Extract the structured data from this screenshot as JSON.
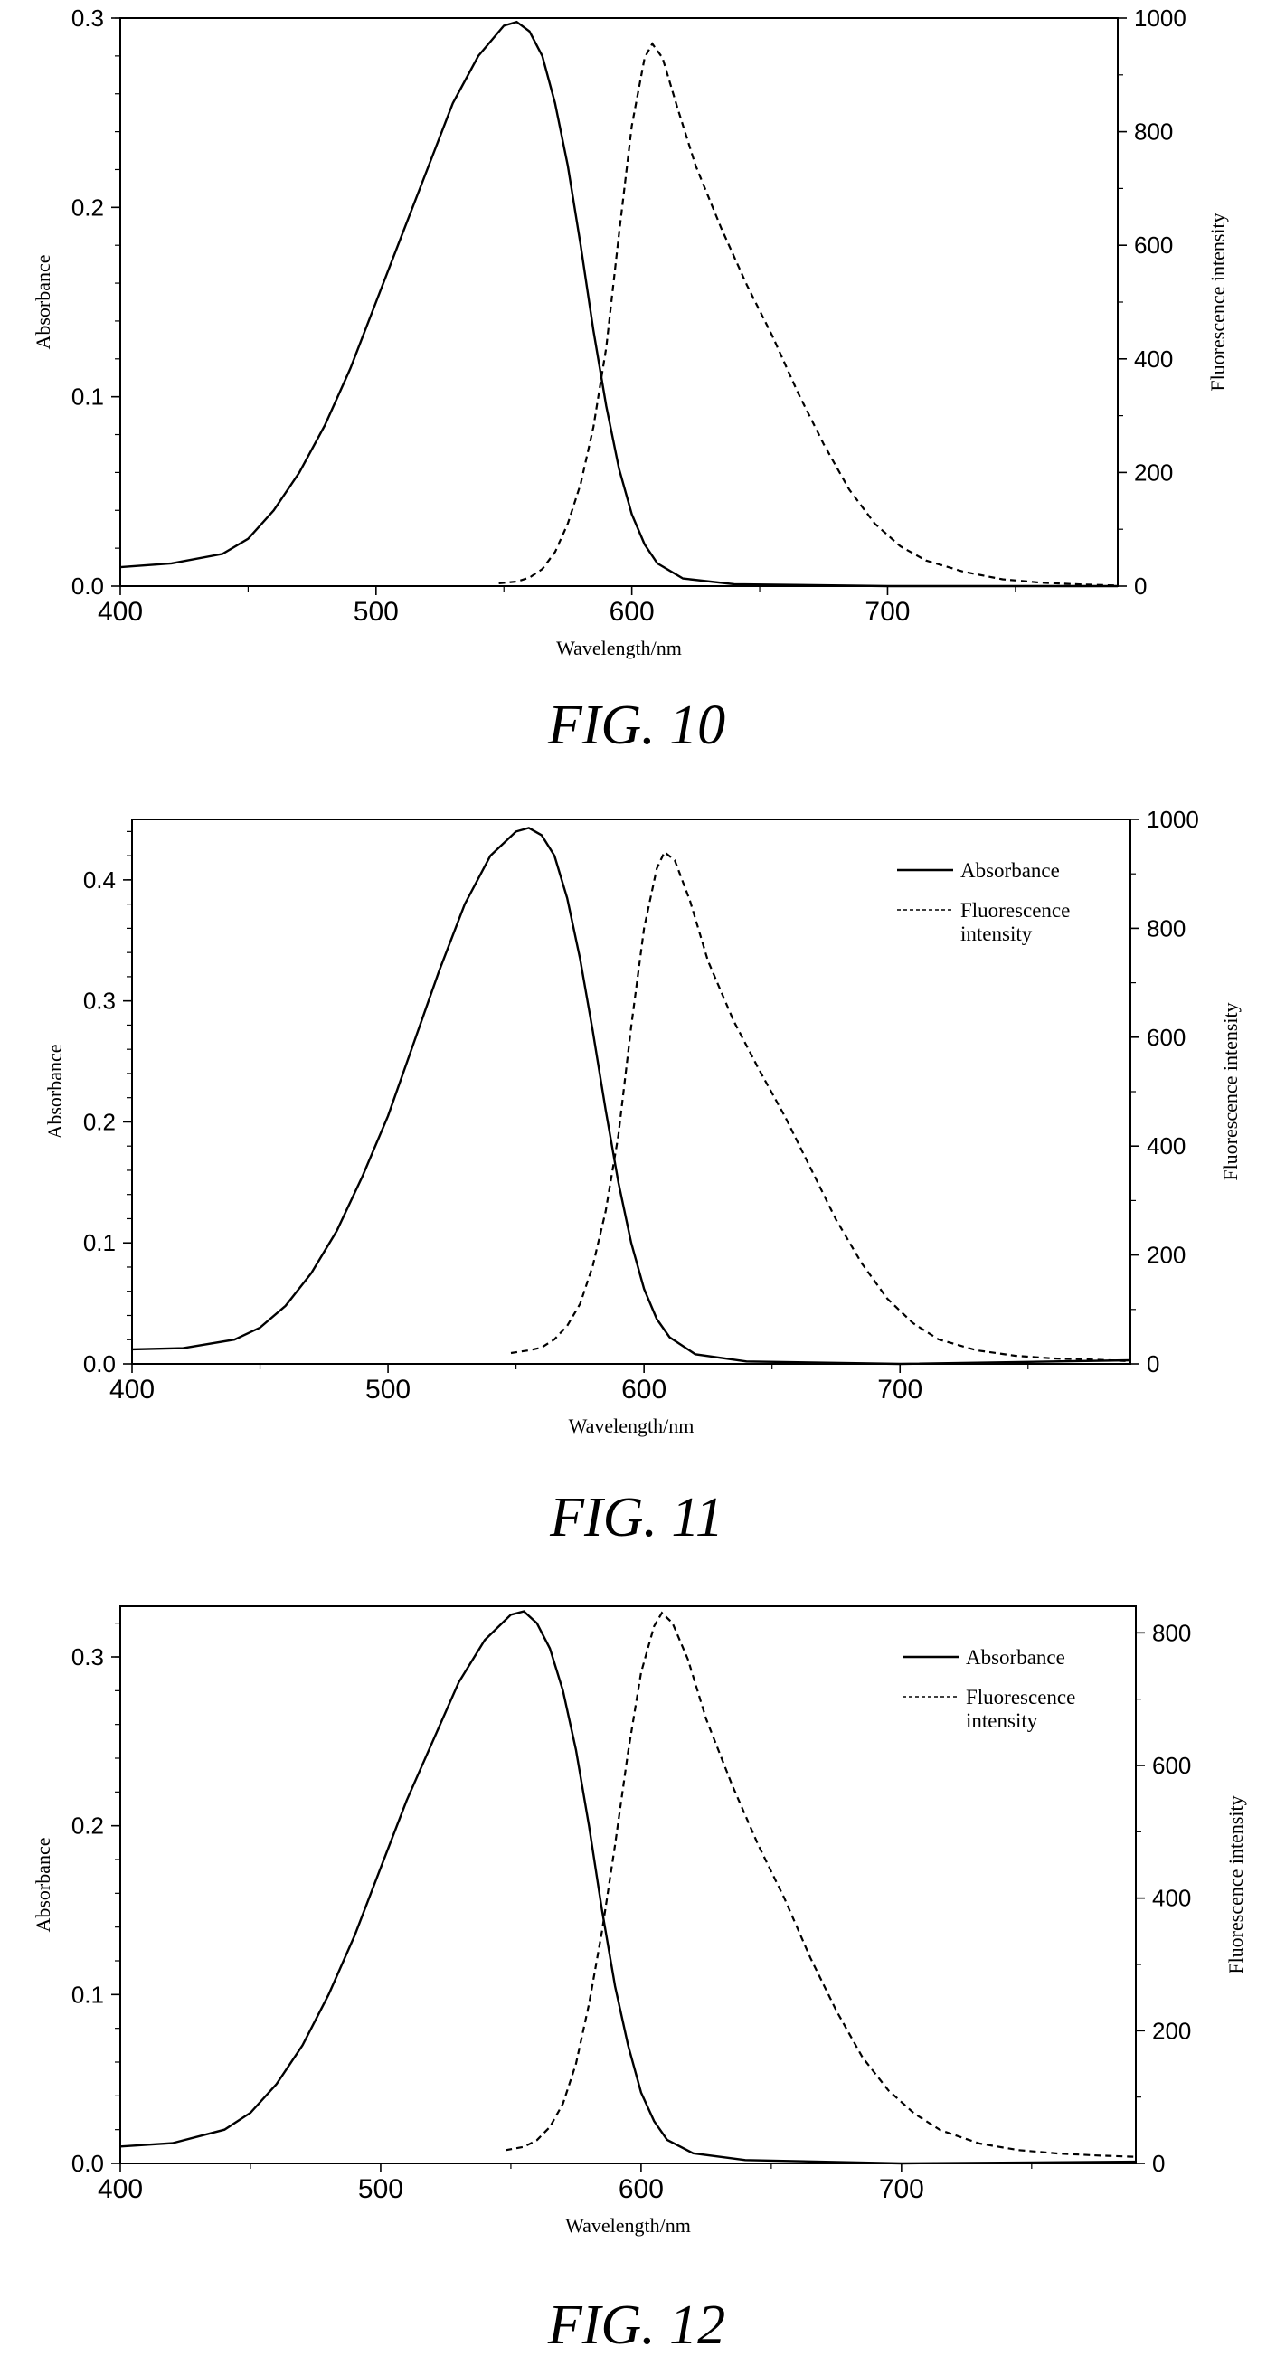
{
  "chart_data": [
    {
      "type": "line",
      "caption": "FIG. 10",
      "xlabel": "Wavelength/nm",
      "ylabel": "Absorbance",
      "y2label": "Fluorescence intensity",
      "xlim": [
        400,
        790
      ],
      "ylim": [
        0,
        0.3
      ],
      "y2lim": [
        0,
        1000
      ],
      "x_ticks": [
        400,
        500,
        600,
        700
      ],
      "y_ticks": [
        0.0,
        0.1,
        0.2,
        0.3
      ],
      "y_tick_labels": [
        "0.0",
        "0.1",
        "0.2",
        "0.3"
      ],
      "y2_ticks": [
        0,
        200,
        400,
        600,
        800,
        1000
      ],
      "legend": null,
      "series": [
        {
          "axis": "left",
          "style": "solid",
          "points": [
            [
              400,
              0.01
            ],
            [
              420,
              0.012
            ],
            [
              440,
              0.017
            ],
            [
              450,
              0.025
            ],
            [
              460,
              0.04
            ],
            [
              470,
              0.06
            ],
            [
              480,
              0.085
            ],
            [
              490,
              0.115
            ],
            [
              500,
              0.15
            ],
            [
              510,
              0.185
            ],
            [
              520,
              0.22
            ],
            [
              530,
              0.255
            ],
            [
              540,
              0.28
            ],
            [
              550,
              0.296
            ],
            [
              555,
              0.298
            ],
            [
              560,
              0.293
            ],
            [
              565,
              0.28
            ],
            [
              570,
              0.255
            ],
            [
              575,
              0.222
            ],
            [
              580,
              0.18
            ],
            [
              585,
              0.135
            ],
            [
              590,
              0.095
            ],
            [
              595,
              0.062
            ],
            [
              600,
              0.038
            ],
            [
              605,
              0.022
            ],
            [
              610,
              0.012
            ],
            [
              620,
              0.004
            ],
            [
              640,
              0.001
            ],
            [
              700,
              0.0
            ],
            [
              790,
              0.0
            ]
          ]
        },
        {
          "axis": "right",
          "style": "dashed",
          "points": [
            [
              548,
              5
            ],
            [
              555,
              8
            ],
            [
              560,
              15
            ],
            [
              565,
              30
            ],
            [
              570,
              60
            ],
            [
              575,
              110
            ],
            [
              580,
              180
            ],
            [
              585,
              280
            ],
            [
              590,
              420
            ],
            [
              595,
              620
            ],
            [
              600,
              810
            ],
            [
              605,
              930
            ],
            [
              608,
              955
            ],
            [
              612,
              930
            ],
            [
              618,
              840
            ],
            [
              625,
              740
            ],
            [
              635,
              630
            ],
            [
              645,
              530
            ],
            [
              655,
              440
            ],
            [
              665,
              340
            ],
            [
              675,
              250
            ],
            [
              685,
              170
            ],
            [
              695,
              110
            ],
            [
              705,
              70
            ],
            [
              715,
              45
            ],
            [
              730,
              25
            ],
            [
              745,
              12
            ],
            [
              760,
              6
            ],
            [
              775,
              3
            ],
            [
              790,
              1
            ]
          ]
        }
      ]
    },
    {
      "type": "line",
      "caption": "FIG. 11",
      "xlabel": "Wavelength/nm",
      "ylabel": "Absorbance",
      "y2label": "Fluorescence intensity",
      "xlim": [
        400,
        790
      ],
      "ylim": [
        0,
        0.45
      ],
      "y2lim": [
        0,
        1000
      ],
      "x_ticks": [
        400,
        500,
        600,
        700
      ],
      "y_ticks": [
        0.0,
        0.1,
        0.2,
        0.3,
        0.4
      ],
      "y_tick_labels": [
        "0.0",
        "0.1",
        "0.2",
        "0.3",
        "0.4"
      ],
      "y2_ticks": [
        0,
        200,
        400,
        600,
        800,
        1000
      ],
      "legend": {
        "position": "top-right",
        "entries": [
          {
            "label": "Absorbance",
            "style": "solid"
          },
          {
            "label": "Fluorescence",
            "label2": "intensity",
            "style": "dashed"
          }
        ]
      },
      "series": [
        {
          "axis": "left",
          "style": "solid",
          "points": [
            [
              400,
              0.012
            ],
            [
              420,
              0.013
            ],
            [
              440,
              0.02
            ],
            [
              450,
              0.03
            ],
            [
              460,
              0.048
            ],
            [
              470,
              0.075
            ],
            [
              480,
              0.11
            ],
            [
              490,
              0.155
            ],
            [
              500,
              0.205
            ],
            [
              510,
              0.265
            ],
            [
              520,
              0.325
            ],
            [
              530,
              0.38
            ],
            [
              540,
              0.42
            ],
            [
              550,
              0.44
            ],
            [
              555,
              0.443
            ],
            [
              560,
              0.437
            ],
            [
              565,
              0.42
            ],
            [
              570,
              0.385
            ],
            [
              575,
              0.335
            ],
            [
              580,
              0.275
            ],
            [
              585,
              0.21
            ],
            [
              590,
              0.15
            ],
            [
              595,
              0.1
            ],
            [
              600,
              0.062
            ],
            [
              605,
              0.037
            ],
            [
              610,
              0.022
            ],
            [
              620,
              0.008
            ],
            [
              640,
              0.002
            ],
            [
              700,
              0.0
            ],
            [
              790,
              0.003
            ]
          ]
        },
        {
          "axis": "right",
          "style": "dashed",
          "points": [
            [
              548,
              20
            ],
            [
              555,
              25
            ],
            [
              560,
              30
            ],
            [
              565,
              45
            ],
            [
              570,
              70
            ],
            [
              575,
              110
            ],
            [
              580,
              180
            ],
            [
              585,
              280
            ],
            [
              590,
              420
            ],
            [
              595,
              620
            ],
            [
              600,
              800
            ],
            [
              605,
              910
            ],
            [
              608,
              940
            ],
            [
              612,
              925
            ],
            [
              618,
              850
            ],
            [
              625,
              740
            ],
            [
              635,
              630
            ],
            [
              645,
              540
            ],
            [
              655,
              455
            ],
            [
              665,
              360
            ],
            [
              675,
              265
            ],
            [
              685,
              185
            ],
            [
              695,
              120
            ],
            [
              705,
              75
            ],
            [
              715,
              45
            ],
            [
              730,
              25
            ],
            [
              745,
              15
            ],
            [
              760,
              10
            ],
            [
              775,
              8
            ],
            [
              790,
              5
            ]
          ]
        }
      ]
    },
    {
      "type": "line",
      "caption": "FIG. 12",
      "xlabel": "Wavelength/nm",
      "ylabel": "Absorbance",
      "y2label": "Fluorescence intensity",
      "xlim": [
        400,
        790
      ],
      "ylim": [
        0,
        0.33
      ],
      "y2lim": [
        0,
        840
      ],
      "x_ticks": [
        400,
        500,
        600,
        700
      ],
      "y_ticks": [
        0.0,
        0.1,
        0.2,
        0.3
      ],
      "y_tick_labels": [
        "0.0",
        "0.1",
        "0.2",
        "0.3"
      ],
      "y2_ticks": [
        0,
        200,
        400,
        600,
        800
      ],
      "legend": {
        "position": "top-right",
        "entries": [
          {
            "label": "Absorbance",
            "style": "solid"
          },
          {
            "label": "Fluorescence",
            "label2": "intensity",
            "style": "dashed"
          }
        ]
      },
      "series": [
        {
          "axis": "left",
          "style": "solid",
          "points": [
            [
              400,
              0.01
            ],
            [
              420,
              0.012
            ],
            [
              440,
              0.02
            ],
            [
              450,
              0.03
            ],
            [
              460,
              0.047
            ],
            [
              470,
              0.07
            ],
            [
              480,
              0.1
            ],
            [
              490,
              0.135
            ],
            [
              500,
              0.175
            ],
            [
              510,
              0.215
            ],
            [
              520,
              0.25
            ],
            [
              530,
              0.285
            ],
            [
              540,
              0.31
            ],
            [
              550,
              0.325
            ],
            [
              555,
              0.327
            ],
            [
              560,
              0.32
            ],
            [
              565,
              0.305
            ],
            [
              570,
              0.28
            ],
            [
              575,
              0.245
            ],
            [
              580,
              0.2
            ],
            [
              585,
              0.15
            ],
            [
              590,
              0.105
            ],
            [
              595,
              0.07
            ],
            [
              600,
              0.042
            ],
            [
              605,
              0.025
            ],
            [
              610,
              0.014
            ],
            [
              620,
              0.006
            ],
            [
              640,
              0.002
            ],
            [
              700,
              0.0
            ],
            [
              790,
              0.001
            ]
          ]
        },
        {
          "axis": "right",
          "style": "dashed",
          "points": [
            [
              548,
              20
            ],
            [
              555,
              25
            ],
            [
              560,
              35
            ],
            [
              565,
              55
            ],
            [
              570,
              90
            ],
            [
              575,
              150
            ],
            [
              580,
              240
            ],
            [
              585,
              350
            ],
            [
              590,
              480
            ],
            [
              595,
              620
            ],
            [
              600,
              740
            ],
            [
              605,
              810
            ],
            [
              608,
              830
            ],
            [
              612,
              815
            ],
            [
              618,
              760
            ],
            [
              625,
              670
            ],
            [
              635,
              570
            ],
            [
              645,
              480
            ],
            [
              655,
              400
            ],
            [
              665,
              310
            ],
            [
              675,
              230
            ],
            [
              685,
              160
            ],
            [
              695,
              110
            ],
            [
              705,
              75
            ],
            [
              715,
              50
            ],
            [
              730,
              30
            ],
            [
              745,
              20
            ],
            [
              760,
              15
            ],
            [
              775,
              12
            ],
            [
              790,
              10
            ]
          ]
        }
      ]
    }
  ]
}
